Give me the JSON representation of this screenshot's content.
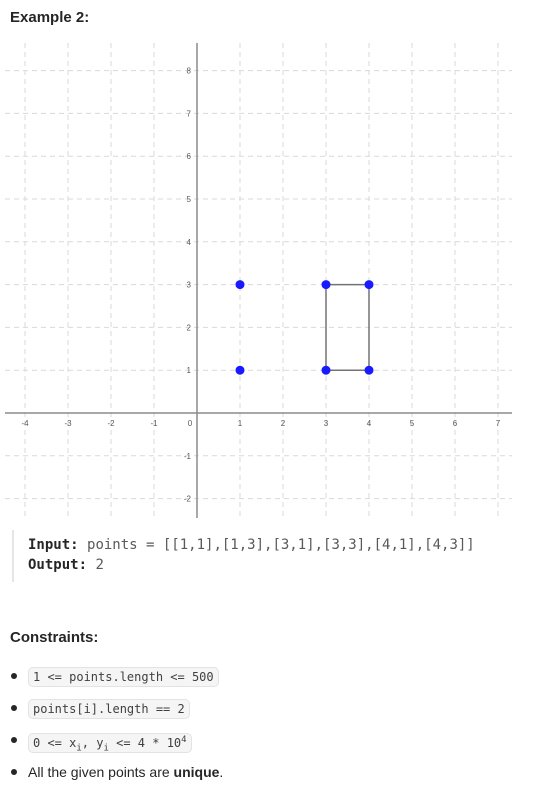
{
  "example": {
    "heading": "Example 2:"
  },
  "graph": {
    "x_range": [
      -4,
      7
    ],
    "y_range": [
      -2,
      8
    ],
    "x_ticks": [
      "-4",
      "-3",
      "-2",
      "-1",
      "0",
      "1",
      "2",
      "3",
      "4",
      "5",
      "6",
      "7"
    ],
    "y_ticks": [
      "-2",
      "-1",
      "1",
      "2",
      "3",
      "4",
      "5",
      "6",
      "7",
      "8"
    ],
    "points": [
      [
        1,
        1
      ],
      [
        1,
        3
      ],
      [
        3,
        1
      ],
      [
        3,
        3
      ],
      [
        4,
        1
      ],
      [
        4,
        3
      ]
    ],
    "rectangle": [
      [
        3,
        1
      ],
      [
        3,
        3
      ],
      [
        4,
        3
      ],
      [
        4,
        1
      ]
    ],
    "point_color": "#1a1aff",
    "rect_color": "#737373"
  },
  "io": {
    "input_label": "Input:",
    "input_value": "points = [[1,1],[1,3],[3,1],[3,3],[4,1],[4,3]]",
    "output_label": "Output:",
    "output_value": "2"
  },
  "constraints": {
    "heading": "Constraints:",
    "c1": "1 <= points.length <= 500",
    "c2": "points[i].length == 2",
    "c3_part1": "0 <= x",
    "c3_sub1": "i",
    "c3_part2": ", y",
    "c3_sub2": "i",
    "c3_part3": " <= 4 * 10",
    "c3_sup": "4",
    "c4_text": "All the given points are ",
    "c4_bold": "unique",
    "c4_end": "."
  }
}
